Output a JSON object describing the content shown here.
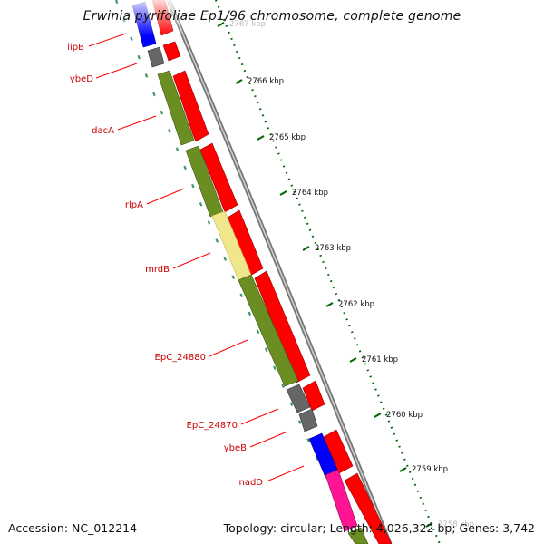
{
  "title": "Erwinia pyrifoliae Ep1/96 chromosome, complete genome",
  "footer": {
    "accession": "Accession: NC_012214",
    "topology": "Topology: circular; Length: 4,026,322 bp; Genes: 3,742"
  },
  "colors": {
    "cds_forward": "#ff0000",
    "cds_olive": "#6b8e23",
    "cds_khaki": "#f0e68c",
    "cds_gray": "#666666",
    "cds_blue": "#0000ff",
    "cds_magenta": "#ff1493",
    "tick_green": "#006400",
    "label_red": "#cc0000"
  },
  "scale_ticks": [
    {
      "label": "2767 kbp"
    },
    {
      "label": "2766 kbp"
    },
    {
      "label": "2765 kbp"
    },
    {
      "label": "2764 kbp"
    },
    {
      "label": "2763 kbp"
    },
    {
      "label": "2762 kbp"
    },
    {
      "label": "2761 kbp"
    },
    {
      "label": "2760 kbp"
    },
    {
      "label": "2759 kbp"
    },
    {
      "label": "2758 kbp"
    }
  ],
  "genes": [
    {
      "name": "lipB"
    },
    {
      "name": "ybeD"
    },
    {
      "name": "dacA"
    },
    {
      "name": "rlpA"
    },
    {
      "name": "mrdB"
    },
    {
      "name": "EpC_24880"
    },
    {
      "name": "EpC_24870"
    },
    {
      "name": "ybeB"
    },
    {
      "name": "nadD"
    }
  ]
}
